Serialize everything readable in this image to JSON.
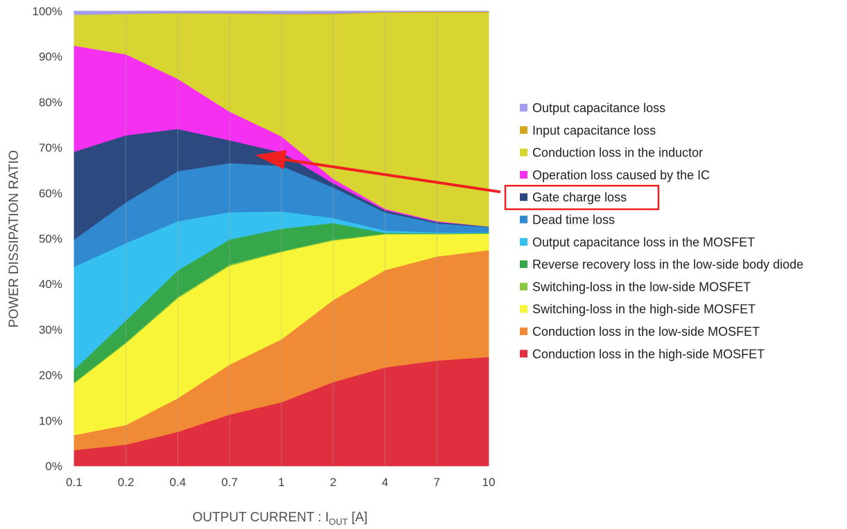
{
  "chart_data": {
    "type": "area",
    "stacked": true,
    "stack_mode": "percent",
    "ylabel": "POWER DISSIPATION RATIO",
    "xlabel": {
      "prefix": "OUTPUT CURRENT : I",
      "subscript": "OUT",
      "suffix": " [A]"
    },
    "categories": [
      "0.1",
      "0.2",
      "0.4",
      "0.7",
      "1",
      "2",
      "4",
      "7",
      "10"
    ],
    "y_ticks": [
      "0%",
      "10%",
      "20%",
      "30%",
      "40%",
      "50%",
      "60%",
      "70%",
      "80%",
      "90%",
      "100%"
    ],
    "ylim": [
      0,
      100
    ],
    "grid": "vertical",
    "legend_position": "right",
    "series": [
      {
        "name": "Conduction loss in the high-side MOSFET",
        "color": "#e03040",
        "values": [
          3.5,
          4.7,
          7.5,
          11.3,
          14,
          18.6,
          21.7,
          23.2,
          24
        ]
      },
      {
        "name": "Conduction loss in the low-side MOSFET",
        "color": "#f08a34",
        "values": [
          3.3,
          4.3,
          7.4,
          11,
          13.8,
          18.2,
          21.4,
          22.9,
          23.5
        ]
      },
      {
        "name": "Switching-loss in the high-side MOSFET",
        "color": "#f8f538",
        "values": [
          11.4,
          18,
          22,
          21.7,
          19.2,
          13.2,
          7.9,
          4.9,
          3.6
        ]
      },
      {
        "name": "Switching-loss in the low-side MOSFET",
        "color": "#8bc840",
        "values": [
          0.2,
          0.2,
          0.3,
          0.3,
          0.2,
          0.2,
          0.1,
          0.1,
          0.1
        ]
      },
      {
        "name": "Reverse recovery loss in the low-side body diode",
        "color": "#37a84a",
        "values": [
          2.8,
          4.8,
          5.8,
          5.5,
          4.9,
          3.7,
          0.2,
          0.1,
          0.1
        ]
      },
      {
        "name": "Output capacitance loss in the MOSFET",
        "color": "#35c0f0",
        "values": [
          22.6,
          17,
          10.8,
          6,
          3.8,
          1.1,
          0.5,
          0.2,
          0.1
        ]
      },
      {
        "name": "Dead time loss",
        "color": "#318ad0",
        "values": [
          6,
          9,
          11,
          10.8,
          10,
          6.8,
          4,
          2,
          1.2
        ]
      },
      {
        "name": "Gate charge loss",
        "color": "#2c4a80",
        "values": [
          19.3,
          14.7,
          9.3,
          5,
          3,
          0.9,
          0.5,
          0.3,
          0.1
        ]
      },
      {
        "name": "Operation loss caused by the IC",
        "color": "#f530f0",
        "values": [
          23.3,
          17.8,
          11,
          6.3,
          3.5,
          1,
          0.3,
          0.2,
          0
        ]
      },
      {
        "name": "Conduction loss in the inductor",
        "color": "#d8d432",
        "values": [
          6.8,
          8.9,
          14.4,
          21.5,
          26.8,
          36.5,
          43.2,
          45.9,
          47.1
        ]
      },
      {
        "name": "Input capacitance loss",
        "color": "#d4a41c",
        "values": [
          0.01,
          0.01,
          0.05,
          0.1,
          0.1,
          0.15,
          0.1,
          0.2,
          0.2
        ]
      },
      {
        "name": "Output capacitance loss",
        "color": "#a29cf0",
        "values": [
          0.8,
          0.6,
          0.45,
          0.5,
          0.6,
          0.55,
          0.2,
          0.1,
          0.1
        ]
      }
    ],
    "annotation": {
      "type": "arrow-and-box",
      "target_series": "Gate charge loss",
      "color": "#f02020"
    }
  }
}
